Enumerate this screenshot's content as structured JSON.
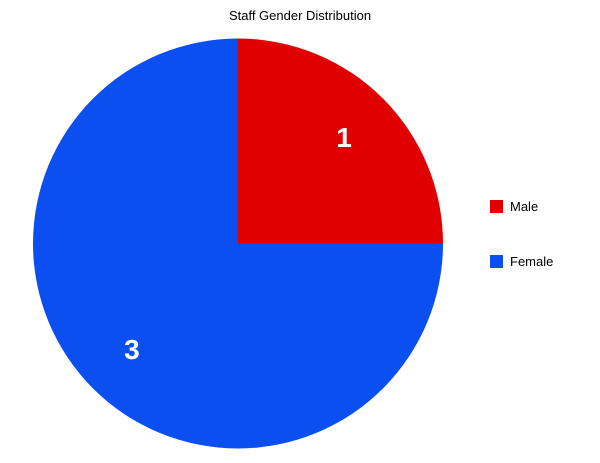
{
  "chart_data": {
    "type": "pie",
    "title": "Staff Gender Distribution",
    "series": [
      {
        "label": "Male",
        "value": 1,
        "color": "#e00000"
      },
      {
        "label": "Female",
        "value": 3,
        "color": "#0b4ff0"
      }
    ],
    "slice_text": "value",
    "slice_label_color": "#ffffff",
    "legend_position": "right",
    "start_angle": "top-clockwise",
    "background_color": "#ffffff",
    "title_color": "#000000"
  }
}
